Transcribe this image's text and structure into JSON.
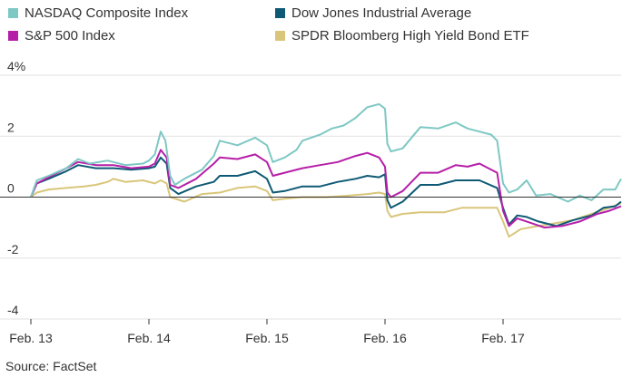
{
  "chart_data": {
    "type": "line",
    "title": "",
    "xlabel": "",
    "ylabel": "",
    "ylim": [
      -4,
      4
    ],
    "y_ticks": [
      4,
      2,
      0,
      -2,
      -4
    ],
    "y_tick_labels": [
      "4%",
      "2",
      "0",
      "-2",
      "-4"
    ],
    "x_range": [
      0,
      5
    ],
    "x_ticks": [
      0,
      1,
      2,
      3,
      4
    ],
    "x_tick_labels": [
      "Feb. 13",
      "Feb. 14",
      "Feb. 15",
      "Feb. 16",
      "Feb. 17"
    ],
    "grid": true,
    "legend_position": "top-left",
    "series": [
      {
        "name": "NASDAQ Composite Index",
        "color": "#7ec8c4",
        "points": [
          [
            0,
            0
          ],
          [
            0.05,
            0.55
          ],
          [
            0.15,
            0.7
          ],
          [
            0.3,
            0.95
          ],
          [
            0.4,
            1.25
          ],
          [
            0.5,
            1.1
          ],
          [
            0.65,
            1.2
          ],
          [
            0.8,
            1.05
          ],
          [
            0.95,
            1.1
          ],
          [
            1.0,
            1.2
          ],
          [
            1.05,
            1.4
          ],
          [
            1.1,
            2.15
          ],
          [
            1.14,
            1.85
          ],
          [
            1.18,
            0.7
          ],
          [
            1.22,
            0.4
          ],
          [
            1.3,
            0.6
          ],
          [
            1.45,
            0.9
          ],
          [
            1.55,
            1.35
          ],
          [
            1.6,
            1.85
          ],
          [
            1.75,
            1.7
          ],
          [
            1.9,
            1.95
          ],
          [
            2.0,
            1.7
          ],
          [
            2.05,
            1.15
          ],
          [
            2.15,
            1.3
          ],
          [
            2.25,
            1.55
          ],
          [
            2.3,
            1.85
          ],
          [
            2.45,
            2.05
          ],
          [
            2.55,
            2.25
          ],
          [
            2.65,
            2.35
          ],
          [
            2.75,
            2.6
          ],
          [
            2.85,
            2.95
          ],
          [
            2.95,
            3.05
          ],
          [
            3.0,
            2.9
          ],
          [
            3.02,
            1.75
          ],
          [
            3.05,
            1.5
          ],
          [
            3.15,
            1.6
          ],
          [
            3.3,
            2.3
          ],
          [
            3.45,
            2.25
          ],
          [
            3.6,
            2.45
          ],
          [
            3.7,
            2.25
          ],
          [
            3.8,
            2.15
          ],
          [
            3.9,
            2.05
          ],
          [
            3.95,
            1.85
          ],
          [
            4.0,
            0.45
          ],
          [
            4.05,
            0.15
          ],
          [
            4.12,
            0.25
          ],
          [
            4.2,
            0.55
          ],
          [
            4.28,
            0.05
          ],
          [
            4.4,
            0.1
          ],
          [
            4.55,
            -0.15
          ],
          [
            4.65,
            0.05
          ],
          [
            4.75,
            -0.1
          ],
          [
            4.85,
            0.25
          ],
          [
            4.95,
            0.25
          ],
          [
            5.0,
            0.6
          ]
        ]
      },
      {
        "name": "Dow Jones Industrial Average",
        "color": "#0e5a75",
        "points": [
          [
            0,
            0
          ],
          [
            0.05,
            0.45
          ],
          [
            0.15,
            0.6
          ],
          [
            0.3,
            0.85
          ],
          [
            0.4,
            1.05
          ],
          [
            0.55,
            0.95
          ],
          [
            0.7,
            0.95
          ],
          [
            0.85,
            0.9
          ],
          [
            1.0,
            0.95
          ],
          [
            1.05,
            1.0
          ],
          [
            1.1,
            1.3
          ],
          [
            1.15,
            1.1
          ],
          [
            1.18,
            0.3
          ],
          [
            1.25,
            0.1
          ],
          [
            1.4,
            0.35
          ],
          [
            1.55,
            0.5
          ],
          [
            1.6,
            0.7
          ],
          [
            1.75,
            0.7
          ],
          [
            1.9,
            0.85
          ],
          [
            2.0,
            0.6
          ],
          [
            2.05,
            0.15
          ],
          [
            2.15,
            0.2
          ],
          [
            2.3,
            0.35
          ],
          [
            2.45,
            0.35
          ],
          [
            2.6,
            0.5
          ],
          [
            2.75,
            0.6
          ],
          [
            2.85,
            0.7
          ],
          [
            2.95,
            0.65
          ],
          [
            3.0,
            0.75
          ],
          [
            3.02,
            -0.1
          ],
          [
            3.05,
            -0.35
          ],
          [
            3.15,
            -0.15
          ],
          [
            3.3,
            0.4
          ],
          [
            3.45,
            0.4
          ],
          [
            3.6,
            0.55
          ],
          [
            3.7,
            0.55
          ],
          [
            3.8,
            0.55
          ],
          [
            3.95,
            0.3
          ],
          [
            4.0,
            -0.35
          ],
          [
            4.05,
            -0.9
          ],
          [
            4.12,
            -0.6
          ],
          [
            4.2,
            -0.65
          ],
          [
            4.3,
            -0.8
          ],
          [
            4.45,
            -0.95
          ],
          [
            4.6,
            -0.75
          ],
          [
            4.75,
            -0.6
          ],
          [
            4.85,
            -0.35
          ],
          [
            4.95,
            -0.3
          ],
          [
            5.0,
            -0.15
          ]
        ]
      },
      {
        "name": "S&P 500 Index",
        "color": "#b51fa8",
        "points": [
          [
            0,
            0
          ],
          [
            0.05,
            0.45
          ],
          [
            0.15,
            0.65
          ],
          [
            0.3,
            0.95
          ],
          [
            0.4,
            1.15
          ],
          [
            0.55,
            1.05
          ],
          [
            0.7,
            1.05
          ],
          [
            0.85,
            0.95
          ],
          [
            1.0,
            1.0
          ],
          [
            1.05,
            1.1
          ],
          [
            1.1,
            1.55
          ],
          [
            1.15,
            1.3
          ],
          [
            1.18,
            0.4
          ],
          [
            1.25,
            0.3
          ],
          [
            1.4,
            0.6
          ],
          [
            1.55,
            1.1
          ],
          [
            1.6,
            1.3
          ],
          [
            1.75,
            1.25
          ],
          [
            1.9,
            1.4
          ],
          [
            2.0,
            1.15
          ],
          [
            2.05,
            0.7
          ],
          [
            2.15,
            0.8
          ],
          [
            2.3,
            0.95
          ],
          [
            2.45,
            1.05
          ],
          [
            2.6,
            1.15
          ],
          [
            2.75,
            1.35
          ],
          [
            2.85,
            1.45
          ],
          [
            2.95,
            1.3
          ],
          [
            3.0,
            1.0
          ],
          [
            3.02,
            0.15
          ],
          [
            3.05,
            0.0
          ],
          [
            3.15,
            0.2
          ],
          [
            3.3,
            0.8
          ],
          [
            3.45,
            0.8
          ],
          [
            3.6,
            1.05
          ],
          [
            3.7,
            1.0
          ],
          [
            3.8,
            1.1
          ],
          [
            3.95,
            0.8
          ],
          [
            4.0,
            -0.45
          ],
          [
            4.05,
            -0.95
          ],
          [
            4.12,
            -0.7
          ],
          [
            4.2,
            -0.8
          ],
          [
            4.35,
            -1.0
          ],
          [
            4.5,
            -0.95
          ],
          [
            4.65,
            -0.8
          ],
          [
            4.8,
            -0.55
          ],
          [
            4.9,
            -0.45
          ],
          [
            5.0,
            -0.3
          ]
        ]
      },
      {
        "name": "SPDR Bloomberg High Yield Bond ETF",
        "color": "#d9c67a",
        "points": [
          [
            0,
            0
          ],
          [
            0.05,
            0.15
          ],
          [
            0.15,
            0.25
          ],
          [
            0.3,
            0.3
          ],
          [
            0.45,
            0.35
          ],
          [
            0.55,
            0.4
          ],
          [
            0.65,
            0.5
          ],
          [
            0.7,
            0.6
          ],
          [
            0.8,
            0.5
          ],
          [
            0.95,
            0.55
          ],
          [
            1.05,
            0.45
          ],
          [
            1.1,
            0.55
          ],
          [
            1.15,
            0.45
          ],
          [
            1.18,
            0.0
          ],
          [
            1.3,
            -0.15
          ],
          [
            1.45,
            0.1
          ],
          [
            1.6,
            0.15
          ],
          [
            1.75,
            0.3
          ],
          [
            1.9,
            0.35
          ],
          [
            2.0,
            0.2
          ],
          [
            2.05,
            -0.1
          ],
          [
            2.15,
            -0.05
          ],
          [
            2.3,
            0.0
          ],
          [
            2.5,
            0.0
          ],
          [
            2.7,
            0.05
          ],
          [
            2.85,
            0.1
          ],
          [
            2.95,
            0.15
          ],
          [
            3.0,
            0.1
          ],
          [
            3.02,
            -0.45
          ],
          [
            3.05,
            -0.65
          ],
          [
            3.15,
            -0.55
          ],
          [
            3.3,
            -0.5
          ],
          [
            3.5,
            -0.5
          ],
          [
            3.65,
            -0.35
          ],
          [
            3.8,
            -0.35
          ],
          [
            3.95,
            -0.35
          ],
          [
            4.0,
            -0.8
          ],
          [
            4.05,
            -1.3
          ],
          [
            4.15,
            -1.05
          ],
          [
            4.3,
            -0.95
          ],
          [
            4.45,
            -0.85
          ],
          [
            4.6,
            -0.75
          ],
          [
            4.75,
            -0.55
          ],
          [
            4.9,
            -0.35
          ],
          [
            5.0,
            -0.2
          ]
        ]
      }
    ]
  },
  "source": "Source: FactSet"
}
